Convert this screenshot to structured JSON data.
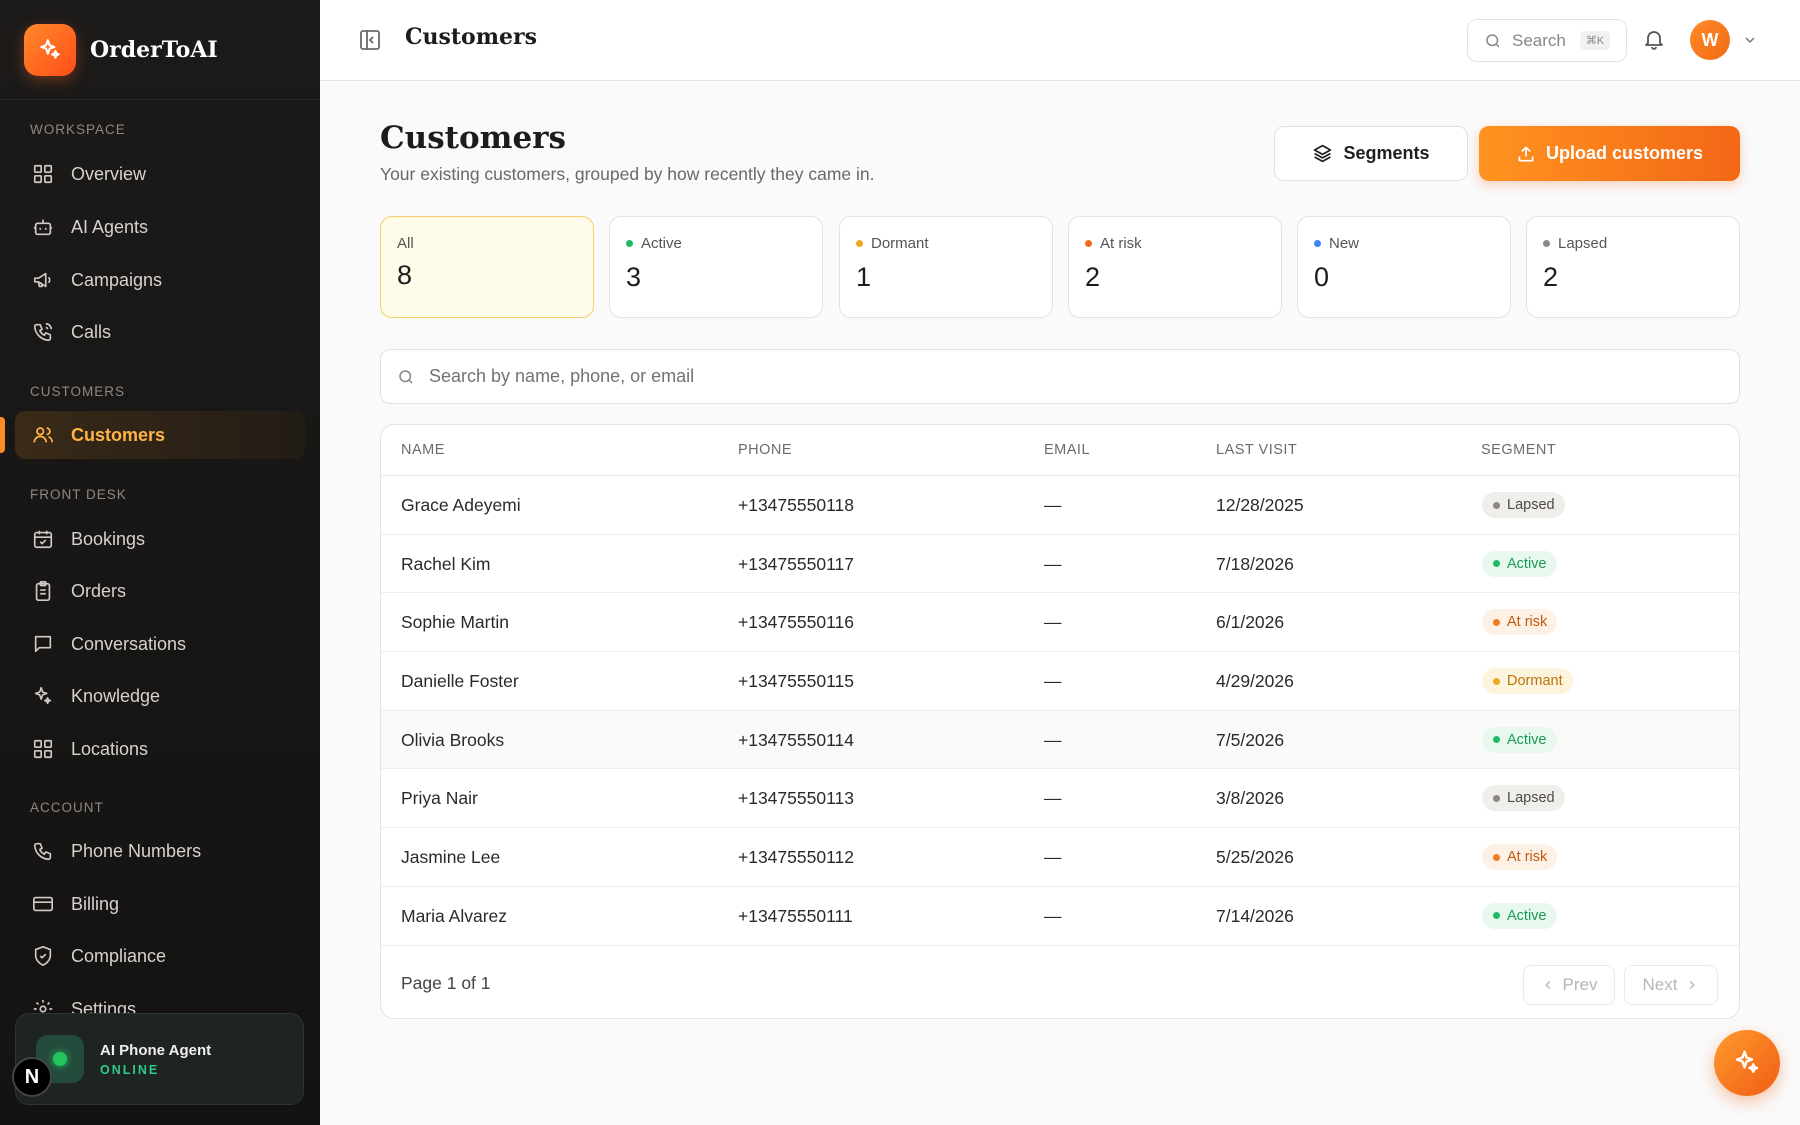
{
  "brand": {
    "name": "OrderToAI"
  },
  "sidebar": {
    "sections": {
      "workspace": "WORKSPACE",
      "customers": "CUSTOMERS",
      "front_desk": "FRONT DESK",
      "account": "ACCOUNT"
    },
    "items": {
      "overview": "Overview",
      "ai_agents": "AI Agents",
      "campaigns": "Campaigns",
      "calls": "Calls",
      "customers": "Customers",
      "bookings": "Bookings",
      "orders": "Orders",
      "conversations": "Conversations",
      "knowledge": "Knowledge",
      "locations": "Locations",
      "phone_numbers": "Phone Numbers",
      "billing": "Billing",
      "compliance": "Compliance",
      "settings": "Settings"
    },
    "agent": {
      "name": "AI Phone Agent",
      "status": "ONLINE",
      "badge": "N"
    }
  },
  "header": {
    "title": "Customers",
    "search_label": "Search",
    "search_kbd": "⌘K",
    "user_initial": "W"
  },
  "page": {
    "title": "Customers",
    "subtitle": "Your existing customers, grouped by how recently they came in.",
    "segments_label": "Segments",
    "upload_label": "Upload customers"
  },
  "stats": [
    {
      "label": "All",
      "value": "8",
      "color": ""
    },
    {
      "label": "Active",
      "value": "3",
      "color": "#1fba63"
    },
    {
      "label": "Dormant",
      "value": "1",
      "color": "#f0a81e"
    },
    {
      "label": "At risk",
      "value": "2",
      "color": "#f06a1e"
    },
    {
      "label": "New",
      "value": "0",
      "color": "#3b82f6"
    },
    {
      "label": "Lapsed",
      "value": "2",
      "color": "#8c8985"
    }
  ],
  "table": {
    "search_placeholder": "Search by name, phone, or email",
    "headers": {
      "name": "NAME",
      "phone": "PHONE",
      "email": "EMAIL",
      "last_visit": "LAST VISIT",
      "segment": "SEGMENT"
    },
    "rows": [
      {
        "name": "Grace Adeyemi",
        "phone": "+13475550118",
        "email": "—",
        "last_visit": "12/28/2025",
        "segment": "Lapsed"
      },
      {
        "name": "Rachel Kim",
        "phone": "+13475550117",
        "email": "—",
        "last_visit": "7/18/2026",
        "segment": "Active"
      },
      {
        "name": "Sophie Martin",
        "phone": "+13475550116",
        "email": "—",
        "last_visit": "6/1/2026",
        "segment": "At risk"
      },
      {
        "name": "Danielle Foster",
        "phone": "+13475550115",
        "email": "—",
        "last_visit": "4/29/2026",
        "segment": "Dormant"
      },
      {
        "name": "Olivia Brooks",
        "phone": "+13475550114",
        "email": "—",
        "last_visit": "7/5/2026",
        "segment": "Active"
      },
      {
        "name": "Priya Nair",
        "phone": "+13475550113",
        "email": "—",
        "last_visit": "3/8/2026",
        "segment": "Lapsed"
      },
      {
        "name": "Jasmine Lee",
        "phone": "+13475550112",
        "email": "—",
        "last_visit": "5/25/2026",
        "segment": "At risk"
      },
      {
        "name": "Maria Alvarez",
        "phone": "+13475550111",
        "email": "—",
        "last_visit": "7/14/2026",
        "segment": "Active"
      }
    ],
    "page_info": "Page 1 of 1",
    "prev_label": "Prev",
    "next_label": "Next"
  }
}
